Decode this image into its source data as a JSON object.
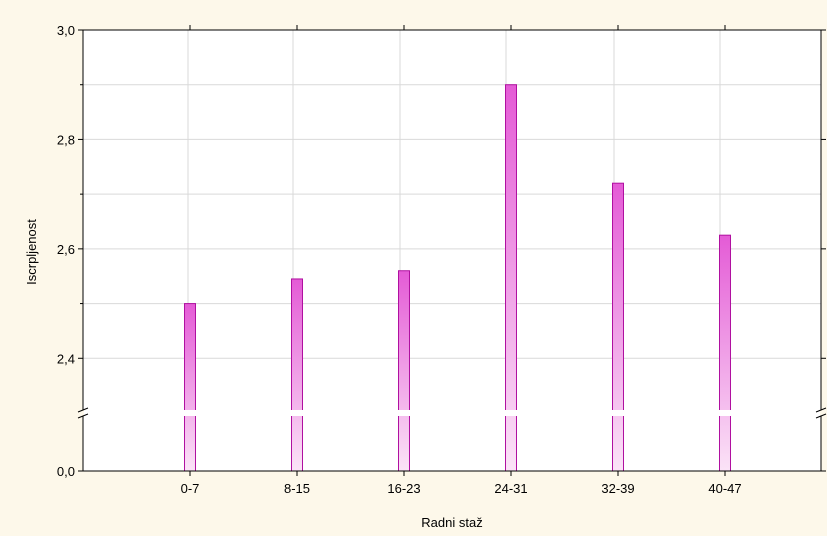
{
  "chart_data": {
    "type": "bar",
    "xlabel": "Radni staž",
    "ylabel": "Iscrpljenost",
    "categories": [
      "0-7",
      "8-15",
      "16-23",
      "24-31",
      "32-39",
      "40-47"
    ],
    "values": [
      2.5,
      2.545,
      2.56,
      2.9,
      2.72,
      2.625
    ],
    "y_axis": {
      "break": true,
      "lower_segment": [
        0.0,
        0.0
      ],
      "upper_segment": [
        2.3,
        3.0
      ],
      "tick_labels": [
        "0,0",
        "2,4",
        "2,6",
        "2,8",
        "3,0"
      ],
      "tick_values": [
        0.0,
        2.4,
        2.6,
        2.8,
        3.0
      ]
    },
    "grid": true,
    "colors": {
      "bar_fill_top": "#e45bd6",
      "bar_fill_bottom": "#fbe3f7",
      "bar_stroke": "#b010a0",
      "grid": "#d9d9d9",
      "plot_background": "#ffffff",
      "page_background": "#fdf8ea"
    }
  }
}
